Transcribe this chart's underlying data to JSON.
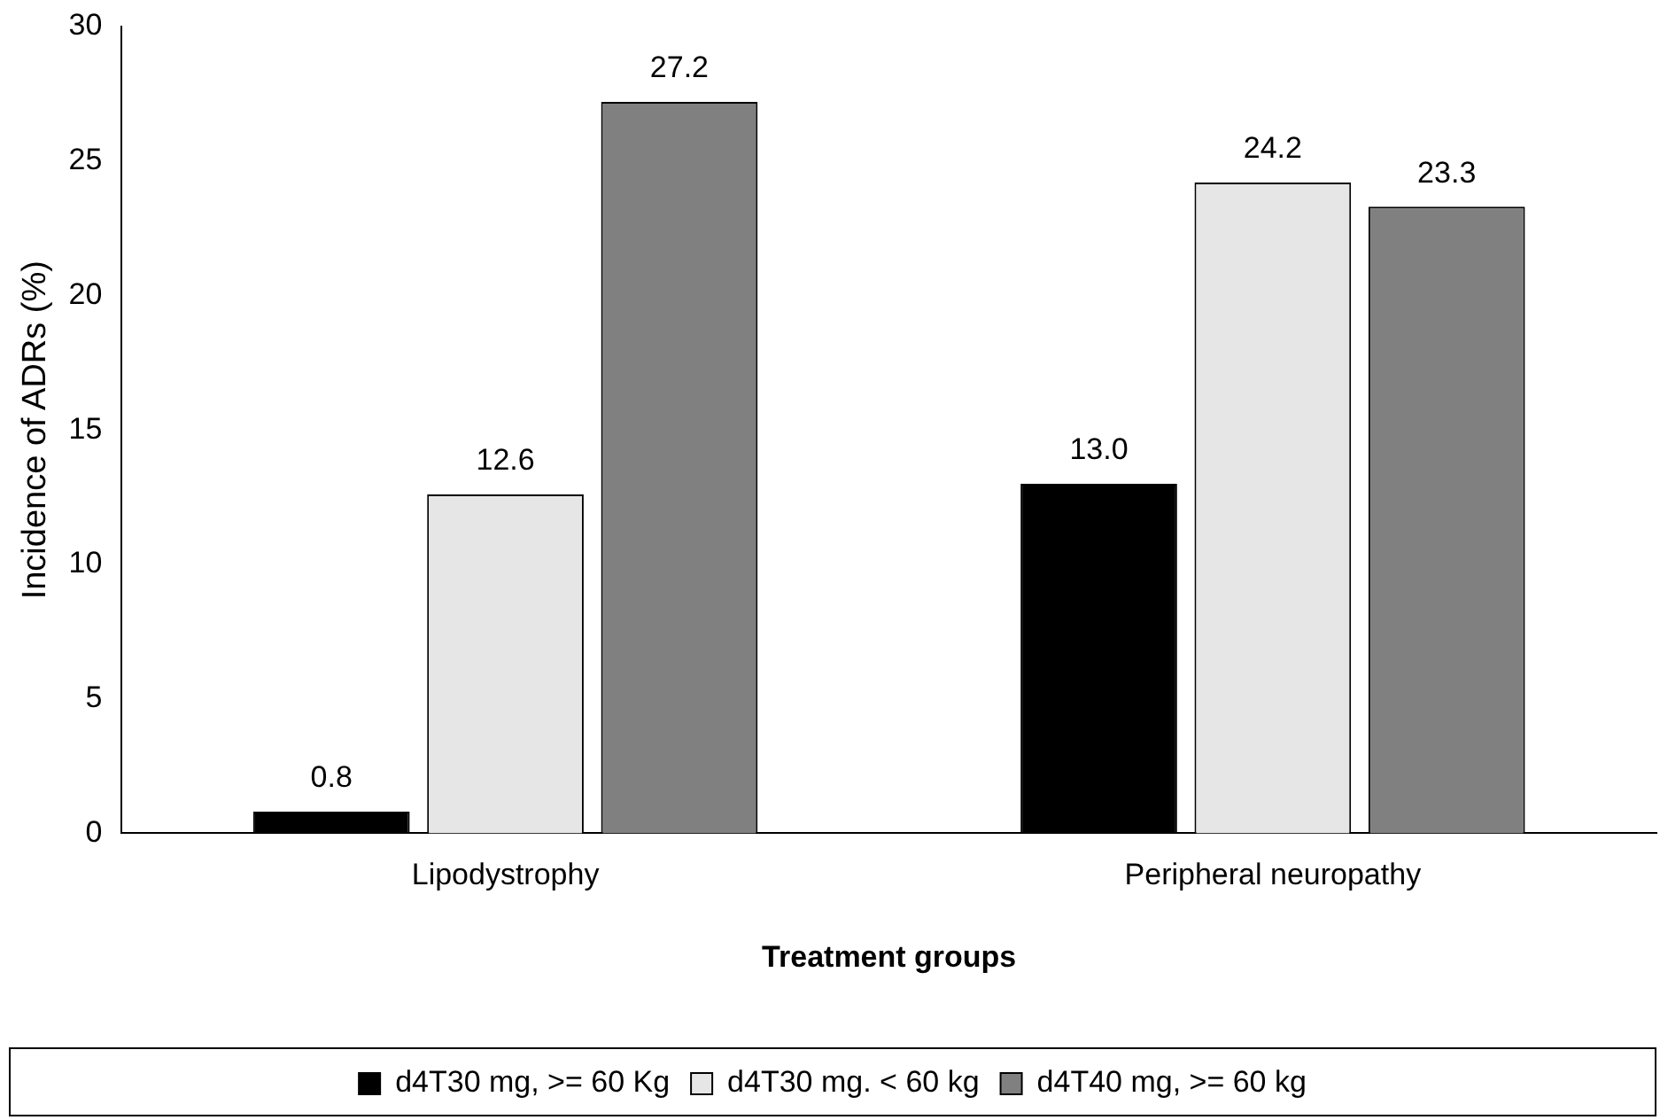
{
  "chart_data": {
    "type": "bar",
    "xlabel": "Treatment groups",
    "ylabel": "Incidence of ADRs (%)",
    "categories": [
      "Lipodystrophy",
      "Peripheral neuropathy"
    ],
    "series": [
      {
        "name": "d4T30 mg, >= 60 Kg",
        "color": "#000000",
        "values": [
          0.8,
          13.0
        ],
        "value_labels": [
          "0.8",
          "13.0"
        ]
      },
      {
        "name": "d4T30 mg. < 60 kg",
        "color": "#e6e6e6",
        "values": [
          12.6,
          24.2
        ],
        "value_labels": [
          "12.6",
          "24.2"
        ]
      },
      {
        "name": "d4T40 mg, >= 60 kg",
        "color": "#808080",
        "values": [
          27.2,
          23.3
        ],
        "value_labels": [
          "27.2",
          "23.3"
        ]
      }
    ],
    "ylim": [
      0,
      30
    ],
    "yticks": [
      0,
      5,
      10,
      15,
      20,
      25,
      30
    ],
    "grid": false,
    "legend": "bottom"
  }
}
